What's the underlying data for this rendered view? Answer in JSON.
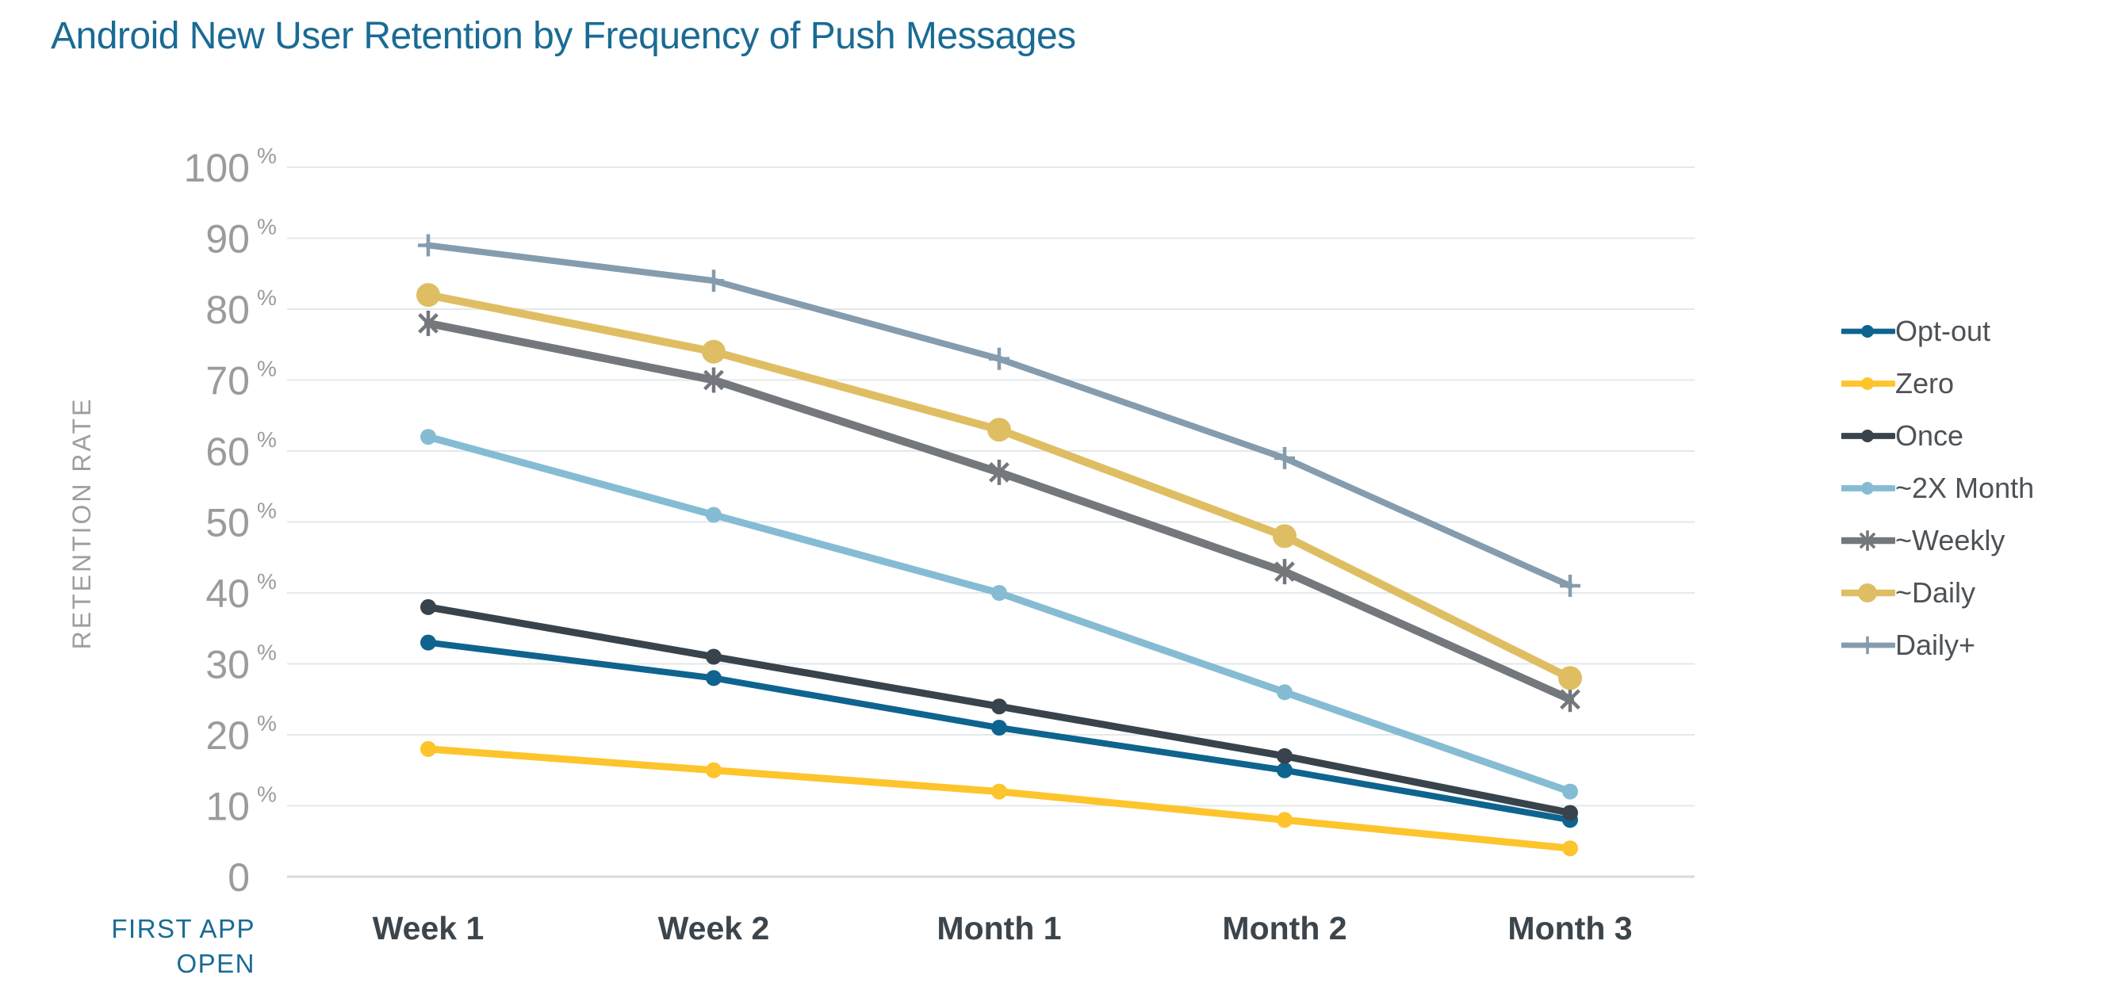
{
  "title": "Android New User Retention by Frequency of Push Messages",
  "title_color": "#1a6b94",
  "chart_data": {
    "type": "line",
    "categories": [
      "Week 1",
      "Week 2",
      "Month 1",
      "Month 2",
      "Month 3"
    ],
    "x_axis_note": "FIRST APP OPEN",
    "ylabel": "RETENTION RATE",
    "ylim": [
      0,
      100
    ],
    "y_ticks": [
      100,
      90,
      80,
      70,
      60,
      50,
      40,
      30,
      20,
      10,
      0
    ],
    "y_tick_suffix": "%",
    "grid": "horizontal",
    "legend_position": "right",
    "series": [
      {
        "name": "Opt-out",
        "color": "#0e648e",
        "marker": "dot",
        "values": [
          33,
          28,
          21,
          15,
          8
        ]
      },
      {
        "name": "Zero",
        "color": "#fdc42c",
        "marker": "dot",
        "values": [
          18,
          15,
          12,
          8,
          4
        ]
      },
      {
        "name": "Once",
        "color": "#39434b",
        "marker": "dot",
        "values": [
          38,
          31,
          24,
          17,
          9
        ]
      },
      {
        "name": "~2X Month",
        "color": "#85bcd4",
        "marker": "dot",
        "values": [
          62,
          51,
          40,
          26,
          12
        ]
      },
      {
        "name": "~Weekly",
        "color": "#74787c",
        "marker": "asterisk",
        "values": [
          78,
          70,
          57,
          43,
          25
        ]
      },
      {
        "name": "~Daily",
        "color": "#dfbe63",
        "marker": "dot-large",
        "values": [
          82,
          74,
          63,
          48,
          28
        ]
      },
      {
        "name": "Daily+",
        "color": "#849cae",
        "marker": "plus",
        "values": [
          89,
          84,
          73,
          59,
          41
        ]
      }
    ],
    "axis_colors": {
      "gridline": "#e3e8e9",
      "zero_line": "#d5dbdb",
      "y_tick_text": "#9b9b9b",
      "x_tick_text": "#3c454c",
      "legend_text": "#4d5257"
    }
  }
}
